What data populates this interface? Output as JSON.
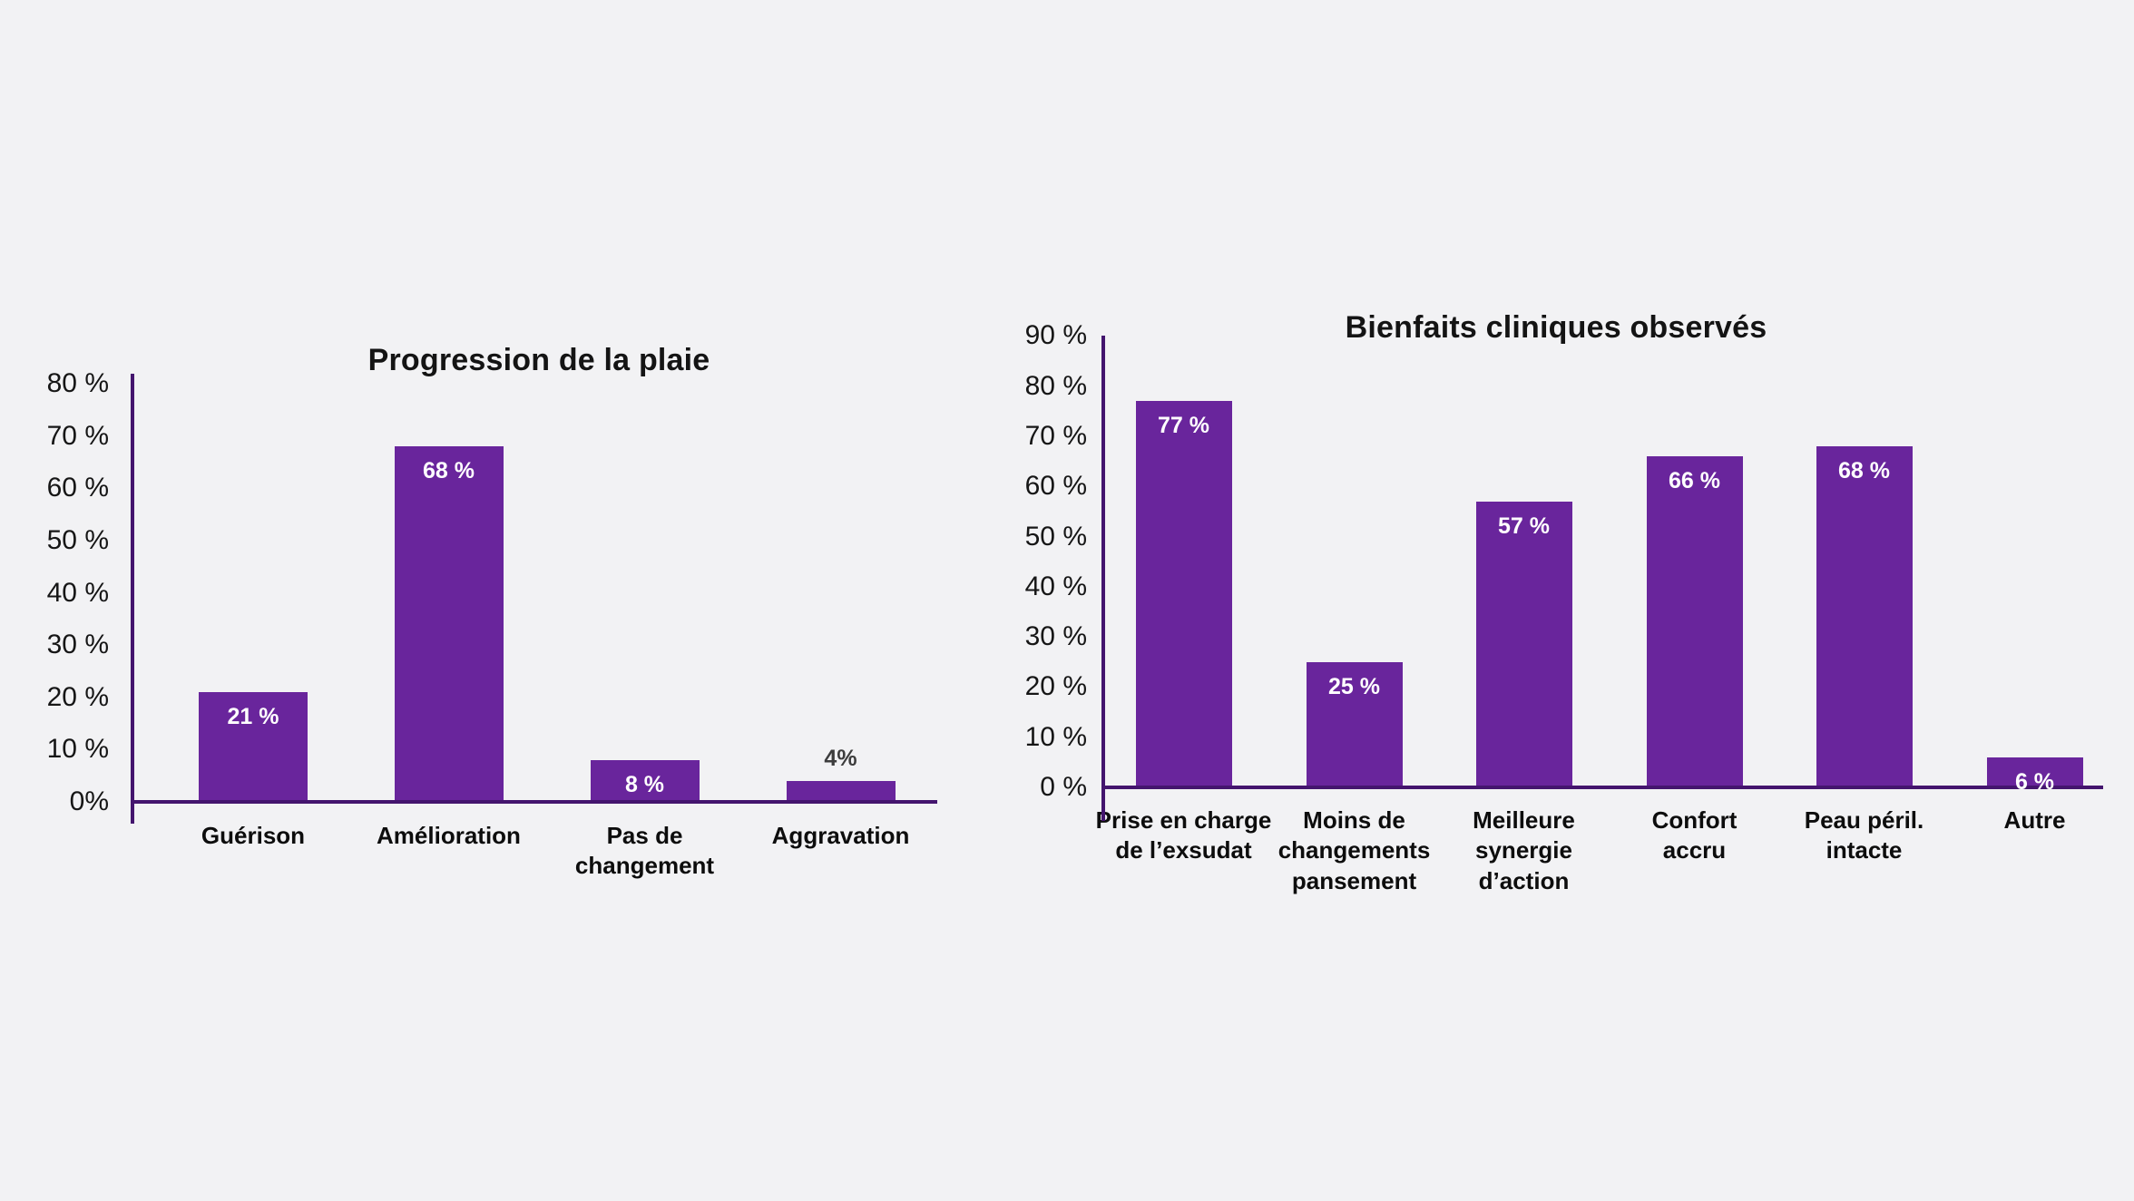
{
  "background_color": "#F2F2F4",
  "bar_color": "#69259C",
  "axis_color": "#44156E",
  "outside_label_color": "#3D3D3D",
  "chart_data": [
    {
      "type": "bar",
      "title": "Progression de la plaie",
      "categories": [
        "Guérison",
        "Amélioration",
        "Pas de\nchangement",
        "Aggravation"
      ],
      "values": [
        21,
        68,
        8,
        4
      ],
      "value_labels": [
        "21 %",
        "68 %",
        "8 %",
        "4%"
      ],
      "value_label_inside": [
        true,
        true,
        true,
        false
      ],
      "ytick_values": [
        80,
        70,
        60,
        50,
        40,
        30,
        20,
        10,
        0
      ],
      "ytick_labels": [
        "80 %",
        "70 %",
        "60 %",
        "50 %",
        "40 %",
        "30 %",
        "20 %",
        "10 %",
        "0%"
      ],
      "ylim": [
        0,
        80
      ],
      "xlabel": "",
      "ylabel": "",
      "grid": false,
      "legend": null
    },
    {
      "type": "bar",
      "title": "Bienfaits cliniques observés",
      "categories": [
        "Prise en charge\nde l’exsudat",
        "Moins de\nchangements\npansement",
        "Meilleure\nsynergie\nd’action",
        "Confort\naccru",
        "Peau péril.\nintacte",
        "Autre"
      ],
      "values": [
        77,
        25,
        57,
        66,
        68,
        6
      ],
      "value_labels": [
        "77 %",
        "25 %",
        "57 %",
        "66 %",
        "68 %",
        "6 %"
      ],
      "value_label_inside": [
        true,
        true,
        true,
        true,
        true,
        true
      ],
      "ytick_values": [
        90,
        80,
        70,
        60,
        50,
        40,
        30,
        20,
        10,
        0
      ],
      "ytick_labels": [
        "90 %",
        "80 %",
        "70 %",
        "60 %",
        "50 %",
        "40 %",
        "30 %",
        "20 %",
        "10 %",
        "0 %"
      ],
      "ylim": [
        0,
        90
      ],
      "xlabel": "",
      "ylabel": "",
      "grid": false,
      "legend": null
    }
  ]
}
